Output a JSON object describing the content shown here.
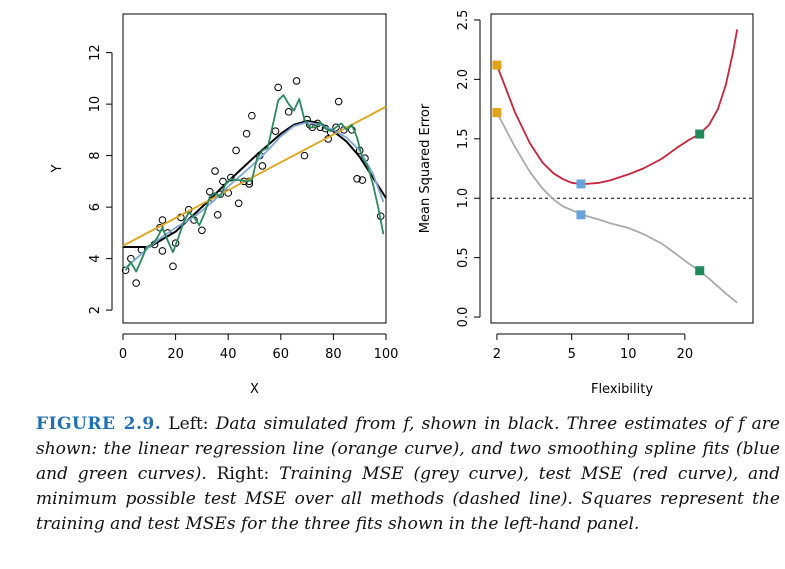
{
  "chart_data": [
    {
      "type": "scatter",
      "panel": "left",
      "xlabel": "X",
      "ylabel": "Y",
      "xlim": [
        0,
        100
      ],
      "ylim": [
        1.5,
        13.5
      ],
      "xticks": [
        0,
        20,
        40,
        60,
        80,
        100
      ],
      "yticks": [
        2,
        4,
        6,
        8,
        10,
        12
      ],
      "points": [
        [
          1,
          3.55
        ],
        [
          3,
          4.0
        ],
        [
          5,
          3.05
        ],
        [
          7,
          4.35
        ],
        [
          12,
          4.55
        ],
        [
          14,
          5.2
        ],
        [
          15,
          4.3
        ],
        [
          15,
          5.5
        ],
        [
          17,
          5.0
        ],
        [
          19,
          3.7
        ],
        [
          20,
          4.6
        ],
        [
          22,
          5.6
        ],
        [
          25,
          5.9
        ],
        [
          27,
          5.5
        ],
        [
          30,
          5.1
        ],
        [
          33,
          6.6
        ],
        [
          34,
          6.35
        ],
        [
          35,
          7.4
        ],
        [
          36,
          5.7
        ],
        [
          37,
          6.5
        ],
        [
          38,
          7.0
        ],
        [
          40,
          6.55
        ],
        [
          41,
          7.15
        ],
        [
          43,
          8.2
        ],
        [
          44,
          6.15
        ],
        [
          46,
          7.0
        ],
        [
          47,
          8.85
        ],
        [
          48,
          7.0
        ],
        [
          48,
          6.9
        ],
        [
          49,
          9.55
        ],
        [
          52,
          8.0
        ],
        [
          53,
          7.6
        ],
        [
          58,
          8.95
        ],
        [
          59,
          10.65
        ],
        [
          63,
          9.7
        ],
        [
          66,
          10.9
        ],
        [
          69,
          8.0
        ],
        [
          70,
          9.4
        ],
        [
          71,
          9.2
        ],
        [
          72,
          9.1
        ],
        [
          74,
          9.25
        ],
        [
          75,
          9.1
        ],
        [
          77,
          9.05
        ],
        [
          78,
          8.65
        ],
        [
          79,
          8.9
        ],
        [
          81,
          9.1
        ],
        [
          82,
          10.1
        ],
        [
          84,
          9.0
        ],
        [
          87,
          9.0
        ],
        [
          89,
          7.1
        ],
        [
          90,
          8.2
        ],
        [
          91,
          7.05
        ],
        [
          92,
          7.9
        ],
        [
          98,
          5.65
        ]
      ],
      "series": [
        {
          "name": "true f",
          "color": "#000000",
          "x": [
            0,
            10,
            20,
            30,
            40,
            50,
            60,
            65,
            70,
            75,
            80,
            85,
            90,
            95,
            100
          ],
          "y": [
            4.45,
            4.45,
            5.05,
            6.0,
            7.0,
            7.95,
            8.85,
            9.2,
            9.35,
            9.25,
            8.95,
            8.55,
            7.95,
            7.15,
            6.35
          ]
        },
        {
          "name": "linear regression",
          "color": "#e0a31a",
          "x": [
            0,
            100
          ],
          "y": [
            4.5,
            9.9
          ]
        },
        {
          "name": "smoothing spline (blue)",
          "color": "#7fa7d6",
          "x": [
            1,
            5,
            10,
            15,
            20,
            25,
            30,
            35,
            40,
            45,
            50,
            55,
            60,
            65,
            70,
            75,
            80,
            85,
            90,
            95,
            99
          ],
          "y": [
            3.65,
            4.0,
            4.45,
            4.85,
            5.2,
            5.5,
            5.85,
            6.3,
            6.8,
            7.25,
            7.7,
            8.2,
            8.75,
            9.15,
            9.3,
            9.2,
            9.0,
            8.7,
            8.2,
            7.3,
            6.2
          ]
        },
        {
          "name": "smoothing spline (green)",
          "color": "#2a8a5e",
          "x": [
            1,
            3,
            5,
            7,
            9,
            11,
            13,
            15,
            17,
            19,
            21,
            23,
            25,
            27,
            29,
            31,
            33,
            35,
            37,
            39,
            41,
            43,
            45,
            47,
            49,
            51,
            53,
            55,
            57,
            59,
            61,
            63,
            65,
            67,
            69,
            71,
            73,
            75,
            77,
            79,
            81,
            83,
            85,
            87,
            89,
            91,
            93,
            95,
            97,
            99
          ],
          "y": [
            3.55,
            3.85,
            3.5,
            3.95,
            4.45,
            4.55,
            4.8,
            5.2,
            4.7,
            4.25,
            4.8,
            5.4,
            5.8,
            5.6,
            5.3,
            5.75,
            6.4,
            6.55,
            6.4,
            6.9,
            7.1,
            7.05,
            7.05,
            7.0,
            7.05,
            7.9,
            8.2,
            8.3,
            9.2,
            10.15,
            10.35,
            10.0,
            9.75,
            10.2,
            9.4,
            9.1,
            9.1,
            9.3,
            9.05,
            8.95,
            9.1,
            9.25,
            9.0,
            9.2,
            8.7,
            7.9,
            7.6,
            6.9,
            6.0,
            4.95
          ]
        }
      ]
    },
    {
      "type": "line",
      "panel": "right",
      "xlabel": "Flexibility",
      "ylabel": "Mean Squared Error",
      "x_scale": "log",
      "xlim": [
        1.86,
        46.1
      ],
      "ylim": [
        -0.05,
        2.55
      ],
      "xticks": [
        2,
        5,
        10,
        20
      ],
      "yticks": [
        0.0,
        0.5,
        1.0,
        1.5,
        2.0,
        2.5
      ],
      "reference_line": {
        "y": 1.0,
        "style": "dashed"
      },
      "series": [
        {
          "name": "Training MSE",
          "color": "#aaaaaa",
          "x": [
            2,
            2.5,
            3,
            3.5,
            4,
            4.5,
            5,
            5.5,
            6,
            7,
            8,
            10,
            12,
            15,
            18,
            21,
            24,
            28,
            33,
            38
          ],
          "y": [
            1.72,
            1.43,
            1.22,
            1.08,
            0.99,
            0.93,
            0.9,
            0.87,
            0.85,
            0.82,
            0.79,
            0.75,
            0.7,
            0.62,
            0.53,
            0.45,
            0.39,
            0.3,
            0.2,
            0.12
          ]
        },
        {
          "name": "Test MSE",
          "color": "#c8243c",
          "x": [
            2,
            2.5,
            3,
            3.5,
            4,
            4.5,
            5,
            5.5,
            6,
            7,
            8,
            10,
            12,
            15,
            18,
            21,
            24,
            27,
            30,
            33,
            36,
            38
          ],
          "y": [
            2.12,
            1.72,
            1.46,
            1.3,
            1.21,
            1.16,
            1.13,
            1.12,
            1.12,
            1.13,
            1.15,
            1.2,
            1.25,
            1.33,
            1.42,
            1.49,
            1.54,
            1.62,
            1.75,
            1.95,
            2.22,
            2.42
          ]
        }
      ],
      "markers": [
        {
          "series": "Training MSE",
          "x": 2,
          "y": 1.72,
          "color": "#e0a31a"
        },
        {
          "series": "Test MSE",
          "x": 2,
          "y": 2.12,
          "color": "#e0a31a"
        },
        {
          "series": "Training MSE",
          "x": 5.6,
          "y": 0.86,
          "color": "#6aa3d8"
        },
        {
          "series": "Test MSE",
          "x": 5.6,
          "y": 1.12,
          "color": "#6aa3d8"
        },
        {
          "series": "Training MSE",
          "x": 24,
          "y": 0.39,
          "color": "#1e8a5a"
        },
        {
          "series": "Test MSE",
          "x": 24,
          "y": 1.54,
          "color": "#1e8a5a"
        }
      ]
    }
  ],
  "caption": {
    "label": "FIGURE 2.9.",
    "parts": [
      {
        "style": "rm",
        "text": " Left: "
      },
      {
        "style": "it",
        "text": "Data simulated from f, shown in black. Three estimates of f are shown: the linear regression line (orange curve), and two smoothing spline fits (blue and green curves)."
      },
      {
        "style": "rm",
        "text": " Right: "
      },
      {
        "style": "it",
        "text": "Training MSE (grey curve), test MSE (red curve), and minimum possible test MSE over all methods (dashed line). Squares represent the training and test MSEs for the three fits shown in the left-hand panel."
      }
    ]
  }
}
